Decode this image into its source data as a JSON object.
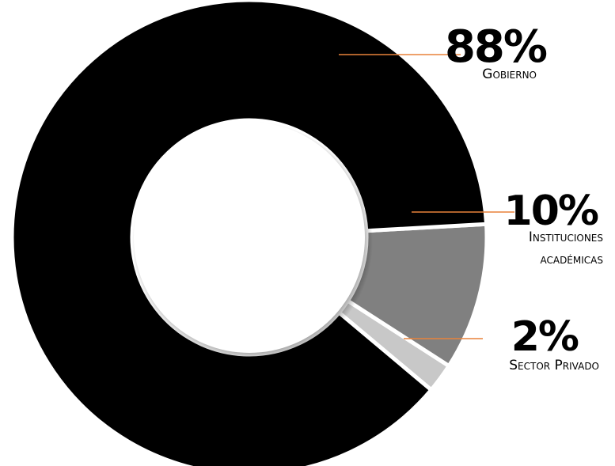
{
  "chart_data": {
    "type": "pie",
    "donut": true,
    "slices": [
      {
        "percent_label": "88%",
        "label_lines": [
          "Gobierno"
        ],
        "value": 88,
        "color": "#000000"
      },
      {
        "percent_label": "10%",
        "label_lines": [
          "Instituciones",
          "académicas"
        ],
        "value": 10,
        "color": "#808080"
      },
      {
        "percent_label": "2%",
        "label_lines": [
          "Sector Privado"
        ],
        "value": 2,
        "color": "#c8c8c8"
      }
    ],
    "leader_line_color": "#e8823a",
    "separator_color": "#ffffff"
  }
}
